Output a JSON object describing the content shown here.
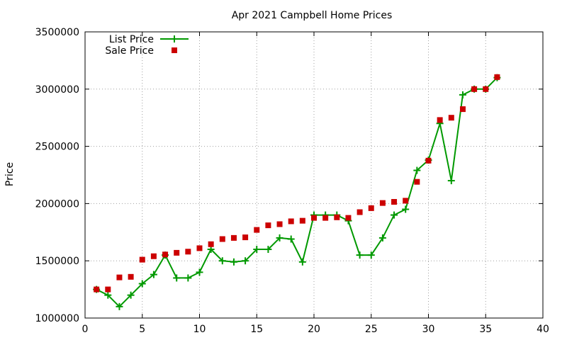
{
  "chart_data": {
    "type": "line",
    "title": "Apr 2021 Campbell Home Prices",
    "xlabel": "",
    "ylabel": "Price",
    "xlim": [
      0,
      40
    ],
    "ylim": [
      1000000,
      3500000
    ],
    "xticks": [
      0,
      5,
      10,
      15,
      20,
      25,
      30,
      35,
      40
    ],
    "yticks": [
      1000000,
      1500000,
      2000000,
      2500000,
      3000000,
      3500000
    ],
    "grid": true,
    "legend_position": "top-left",
    "series": [
      {
        "name": "List Price",
        "style": "line+cross",
        "color": "#009900",
        "x": [
          1,
          2,
          3,
          4,
          5,
          6,
          7,
          8,
          9,
          10,
          11,
          12,
          13,
          14,
          15,
          16,
          17,
          18,
          19,
          20,
          21,
          22,
          23,
          24,
          25,
          26,
          27,
          28,
          29,
          30,
          31,
          32,
          33,
          34,
          35,
          36
        ],
        "y": [
          1250000,
          1200000,
          1100000,
          1200000,
          1300000,
          1380000,
          1550000,
          1350000,
          1350000,
          1400000,
          1600000,
          1500000,
          1490000,
          1500000,
          1600000,
          1600000,
          1700000,
          1690000,
          1490000,
          1900000,
          1900000,
          1900000,
          1850000,
          1550000,
          1550000,
          1700000,
          1900000,
          1950000,
          2290000,
          2380000,
          2700000,
          2200000,
          2950000,
          3000000,
          3000000,
          3100000
        ]
      },
      {
        "name": "Sale Price",
        "style": "square",
        "color": "#cc0000",
        "x": [
          1,
          2,
          3,
          4,
          5,
          6,
          7,
          8,
          9,
          10,
          11,
          12,
          13,
          14,
          15,
          16,
          17,
          18,
          19,
          20,
          21,
          22,
          23,
          24,
          25,
          26,
          27,
          28,
          29,
          30,
          31,
          32,
          33,
          34,
          35,
          36
        ],
        "y": [
          1250000,
          1250000,
          1355000,
          1360000,
          1510000,
          1540000,
          1555000,
          1570000,
          1580000,
          1610000,
          1645000,
          1690000,
          1700000,
          1705000,
          1770000,
          1810000,
          1820000,
          1845000,
          1850000,
          1875000,
          1875000,
          1880000,
          1875000,
          1925000,
          1960000,
          2005000,
          2015000,
          2025000,
          2190000,
          2375000,
          2730000,
          2750000,
          2825000,
          3000000,
          3000000,
          3105000
        ]
      }
    ]
  }
}
